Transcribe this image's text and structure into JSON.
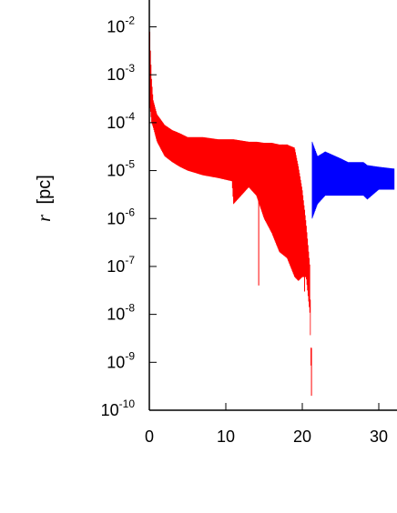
{
  "chart_data": {
    "type": "line",
    "title": "",
    "xlabel": "",
    "ylabel": "r [pc]",
    "ylabel_parts": {
      "var": "r",
      "unit": "[pc]"
    },
    "yscale": "log",
    "ylim": [
      1e-10,
      0.1
    ],
    "xlim": [
      0,
      32
    ],
    "x_ticks": [
      0,
      10,
      20,
      30
    ],
    "x_tick_labels": [
      "0",
      "10",
      "20",
      "30"
    ],
    "y_ticks": [
      -10,
      -9,
      -8,
      -7,
      -6,
      -5,
      -4,
      -3,
      -2
    ],
    "y_tick_labels": [
      {
        "base": "10",
        "exp": "-10"
      },
      {
        "base": "10",
        "exp": "-9"
      },
      {
        "base": "10",
        "exp": "-8"
      },
      {
        "base": "10",
        "exp": "-7"
      },
      {
        "base": "10",
        "exp": "-6"
      },
      {
        "base": "10",
        "exp": "-5"
      },
      {
        "base": "10",
        "exp": "-4"
      },
      {
        "base": "10",
        "exp": "-3"
      },
      {
        "base": "10",
        "exp": "-2"
      }
    ],
    "grid": false,
    "series": [
      {
        "color": "#ff0000",
        "x": [
          0.0,
          0.1,
          0.3,
          0.5,
          1.0,
          2.0,
          3.0,
          4.0,
          5.0,
          7.0,
          9.0,
          10.8,
          11.0,
          13.0,
          14.0,
          15.0,
          16.0,
          17.0,
          18.0,
          19.0,
          19.5,
          20.0,
          20.5,
          21.0,
          21.2
        ],
        "upper": [
          0.03,
          0.005,
          0.0008,
          0.0003,
          0.00015,
          9e-05,
          7e-05,
          6e-05,
          5e-05,
          5e-05,
          4.5e-05,
          4.5e-05,
          4.5e-05,
          4e-05,
          4e-05,
          3.8e-05,
          3.8e-05,
          3.5e-05,
          3.5e-05,
          3e-05,
          1.2e-05,
          4e-06,
          8e-07,
          1e-07,
          2e-10
        ],
        "lower": [
          0.0002,
          0.0002,
          0.0001,
          8e-05,
          4e-05,
          2e-05,
          1.5e-05,
          1.2e-05,
          1e-05,
          8e-06,
          7e-06,
          6e-06,
          2e-06,
          4.5e-06,
          3e-06,
          1e-06,
          5e-07,
          2e-07,
          1.5e-07,
          6e-08,
          5e-08,
          6e-08,
          6e-08,
          1e-08,
          2e-10
        ],
        "spikes": [
          {
            "x": 14.3,
            "y": 4e-08
          },
          {
            "x": 17.4,
            "y": 2e-07
          },
          {
            "x": 18.0,
            "y": 1.5e-07
          },
          {
            "x": 20.3,
            "y": 3e-08
          },
          {
            "x": 21.2,
            "y": 2e-10
          }
        ]
      },
      {
        "color": "#0000ff",
        "x": [
          21.3,
          22.0,
          23.0,
          25.0,
          26.0,
          27.0,
          28.0,
          28.5,
          30.0,
          32.0
        ],
        "upper": [
          4e-05,
          2e-05,
          2.5e-05,
          1.8e-05,
          1.5e-05,
          1.5e-05,
          1.5e-05,
          1.3e-05,
          1.2e-05,
          1.1e-05
        ],
        "lower": [
          1e-06,
          2e-06,
          3e-06,
          3e-06,
          3e-06,
          3e-06,
          3e-06,
          2.5e-06,
          4e-06,
          4e-06
        ],
        "spikes": []
      }
    ]
  }
}
